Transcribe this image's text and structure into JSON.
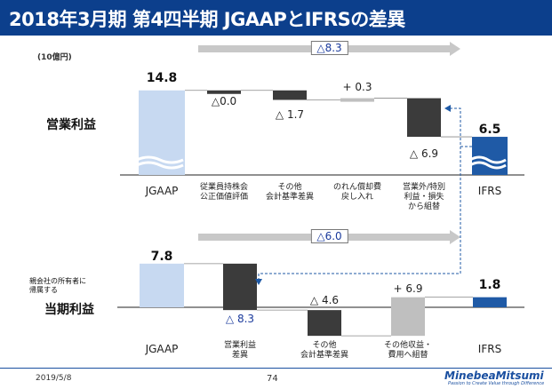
{
  "header": {
    "title": "2018年3月期 第4四半期 JGAAPとIFRSの差異"
  },
  "unit": "(10億円)",
  "colors": {
    "header_bg": "#0c3f8c",
    "jgaap": "#c7d9f1",
    "decrease": "#3b3b3b",
    "increase": "#bfbfbf",
    "ifrs": "#1f5aa6",
    "highlight_blue": "#1a3a9c"
  },
  "chart_data": [
    {
      "type": "waterfall",
      "title": "営業利益",
      "total_change_label": "△8.3",
      "categories": [
        "JGAAP",
        "従業員持株会\n公正価値評価",
        "その他\n会計基準差異",
        "のれん償却費\n戻し入れ",
        "営業外/特別\n利益・損失\nから組替",
        "IFRS"
      ],
      "axis_labels": [
        "JGAAP",
        "IFRS"
      ],
      "values": [
        14.8,
        -0.0,
        -1.7,
        0.3,
        -6.9,
        6.5
      ],
      "value_labels": [
        "14.8",
        "△0.0",
        "△ 1.7",
        "+ 0.3",
        "△ 6.9",
        "6.5"
      ],
      "kinds": [
        "total",
        "decrease",
        "decrease",
        "increase",
        "decrease",
        "total"
      ]
    },
    {
      "type": "waterfall",
      "title": "親会社の所有者に帰属する当期利益",
      "title_small": "親会社の所有者に\n帰属する",
      "title_big": "当期利益",
      "total_change_label": "△6.0",
      "categories": [
        "JGAAP",
        "営業利益\n差異",
        "その他\n会計基準差異",
        "その他収益・\n費用へ組替",
        "IFRS"
      ],
      "axis_labels": [
        "JGAAP",
        "IFRS"
      ],
      "values": [
        7.8,
        -8.3,
        -4.6,
        6.9,
        1.8
      ],
      "value_labels": [
        "7.8",
        "△ 8.3",
        "△ 4.6",
        "+ 6.9",
        "1.8"
      ],
      "kinds": [
        "total",
        "decrease",
        "decrease",
        "increase",
        "total"
      ]
    }
  ],
  "footer": {
    "date": "2019/5/8",
    "page": "74",
    "logo": "MinebeaMitsumi",
    "tagline": "Passion to Create Value through Difference"
  }
}
